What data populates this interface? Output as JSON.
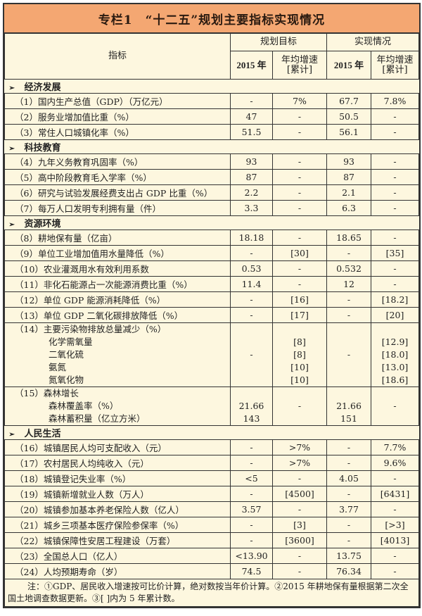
{
  "title": "专栏1　“十二五”规划主要指标实现情况",
  "header": {
    "indicator": "指标",
    "plan": "规划目标",
    "actual": "实现情况",
    "year": "2015 年",
    "growth_line1": "年均增速",
    "growth_line2": "[累计]"
  },
  "sections": [
    {
      "name": "经济发展",
      "rows": [
        {
          "label": "（1）国内生产总值（GDP）（万亿元）",
          "values": [
            "-",
            "7%",
            "67.7",
            "7.8%"
          ]
        },
        {
          "label": "（2）服务业增加值比重（%）",
          "values": [
            "47",
            "-",
            "50.5",
            "-"
          ]
        },
        {
          "label": "（3）常住人口城镇化率（%）",
          "values": [
            "51.5",
            "-",
            "56.1",
            "-"
          ]
        }
      ]
    },
    {
      "name": "科技教育",
      "rows": [
        {
          "label": "（4）九年义务教育巩固率（%）",
          "values": [
            "93",
            "-",
            "93",
            "-"
          ]
        },
        {
          "label": "（5）高中阶段教育毛入学率（%）",
          "values": [
            "87",
            "-",
            "87",
            "-"
          ]
        },
        {
          "label": "（6）研究与试验发展经费支出占 GDP 比重（%）",
          "values": [
            "2.2",
            "-",
            "2.1",
            "-"
          ]
        },
        {
          "label": "（7）每万人口发明专利拥有量（件）",
          "values": [
            "3.3",
            "-",
            "6.3",
            "-"
          ]
        }
      ]
    },
    {
      "name": "资源环境",
      "rows": [
        {
          "label": "（8）耕地保有量（亿亩）",
          "values": [
            "18.18",
            "-",
            "18.65",
            "-"
          ]
        },
        {
          "label": "（9）单位工业增加值用水量降低（%）",
          "values": [
            "-",
            "[30]",
            "-",
            "[35]"
          ]
        },
        {
          "label": "（10）农业灌溉用水有效利用系数",
          "values": [
            "0.53",
            "-",
            "0.532",
            "-"
          ]
        },
        {
          "label": "（11）非化石能源占一次能源消费比重（%）",
          "values": [
            "11.4",
            "-",
            "12",
            "-"
          ]
        },
        {
          "label": "（12）单位 GDP 能源消耗降低（%）",
          "values": [
            "-",
            "[16]",
            "-",
            "[18.2]"
          ]
        },
        {
          "label": "（13）单位 GDP 二氧化碳排放降低（%）",
          "values": [
            "-",
            "[17]",
            "-",
            "[20]"
          ]
        },
        {
          "label": "（14）主要污染物排放总量减少（%）",
          "sub": [
            "化学需氧量",
            "二氧化硫",
            "氨氮",
            "氮氧化物"
          ],
          "values": [
            [
              "-"
            ],
            [
              "",
              "[8]",
              "[8]",
              "[10]",
              "[10]"
            ],
            [
              "-"
            ],
            [
              "",
              "[12.9]",
              "[18.0]",
              "[13.0]",
              "[18.6]"
            ]
          ]
        },
        {
          "label": "（15）森林增长",
          "sub": [
            "森林覆盖率（%）",
            "森林蓄积量（亿立方米）"
          ],
          "values": [
            [
              "",
              "21.66",
              "143"
            ],
            [
              "-"
            ],
            [
              "",
              "21.66",
              "151"
            ],
            [
              "-"
            ]
          ]
        }
      ]
    },
    {
      "name": "人民生活",
      "rows": [
        {
          "label": "（16）城镇居民人均可支配收入（元）",
          "values": [
            "-",
            ">7%",
            "-",
            "7.7%"
          ]
        },
        {
          "label": "（17）农村居民人均纯收入（元）",
          "values": [
            "-",
            ">7%",
            "-",
            "9.6%"
          ]
        },
        {
          "label": "（18）城镇登记失业率（%）",
          "values": [
            "<5",
            "-",
            "4.05",
            "-"
          ]
        },
        {
          "label": "（19）城镇新增就业人数（万人）",
          "values": [
            "-",
            "[4500]",
            "-",
            "[6431]"
          ]
        },
        {
          "label": "（20）城镇参加基本养老保险人数（亿人）",
          "values": [
            "3.57",
            "-",
            "3.77",
            "-"
          ]
        },
        {
          "label": "（21）城乡三项基本医疗保险参保率（%）",
          "values": [
            "-",
            "[3]",
            "-",
            "[>3]"
          ]
        },
        {
          "label": "（22）城镇保障性安居工程建设（万套）",
          "values": [
            "-",
            "[3600]",
            "-",
            "[4013]"
          ]
        },
        {
          "label": "（23）全国总人口（亿人）",
          "values": [
            "<13.90",
            "-",
            "13.75",
            "-"
          ]
        },
        {
          "label": "（24）人均预期寿命（岁）",
          "values": [
            "74.5",
            "-",
            "76.34",
            "-"
          ]
        }
      ]
    }
  ],
  "note": "注：①GDP、居民收入增速按可比价计算，绝对数按当年价计算。②2015 年耕地保有量根据第二次全国土地调查数据更新。③[ ]内为 5 年累计数。"
}
